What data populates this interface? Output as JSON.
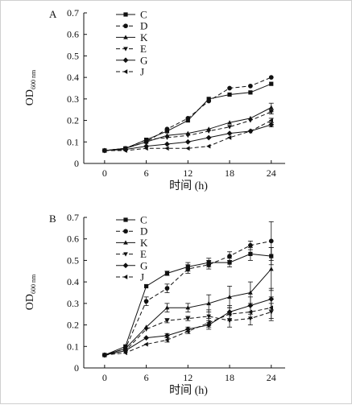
{
  "chart_data": [
    {
      "panel_label": "A",
      "type": "line",
      "ylabel_main": "OD",
      "ylabel_sub": "600 nm",
      "xlabel": "时间 (h)",
      "xticks": [
        0,
        6,
        12,
        18,
        24
      ],
      "yticks": [
        "0",
        "0.1",
        "0.2",
        "0.3",
        "0.4",
        "0.5",
        "0.6",
        "0.7"
      ],
      "ylim": [
        0,
        0.7
      ],
      "xlim": [
        -3,
        26
      ],
      "legend_position": "top-left",
      "series": [
        {
          "name": "C",
          "marker": "square",
          "dash": "solid",
          "x": [
            0,
            3,
            6,
            9,
            12,
            15,
            18,
            21,
            24
          ],
          "y": [
            0.06,
            0.07,
            0.11,
            0.15,
            0.2,
            0.3,
            0.32,
            0.33,
            0.37
          ],
          "err": [
            0,
            0,
            0,
            0,
            0,
            0,
            0,
            0,
            0
          ]
        },
        {
          "name": "D",
          "marker": "circle",
          "dash": "dashed",
          "x": [
            0,
            3,
            6,
            9,
            12,
            15,
            18,
            21,
            24
          ],
          "y": [
            0.06,
            0.07,
            0.1,
            0.16,
            0.21,
            0.29,
            0.35,
            0.36,
            0.4
          ],
          "err": [
            0,
            0,
            0,
            0,
            0,
            0,
            0,
            0,
            0
          ]
        },
        {
          "name": "K",
          "marker": "triangle-up",
          "dash": "solid",
          "x": [
            0,
            3,
            6,
            9,
            12,
            15,
            18,
            21,
            24
          ],
          "y": [
            0.06,
            0.07,
            0.1,
            0.13,
            0.14,
            0.16,
            0.19,
            0.21,
            0.26
          ],
          "err": [
            0,
            0,
            0,
            0,
            0,
            0,
            0,
            0,
            0.02
          ]
        },
        {
          "name": "E",
          "marker": "triangle-down",
          "dash": "dashed",
          "x": [
            0,
            3,
            6,
            9,
            12,
            15,
            18,
            21,
            24
          ],
          "y": [
            0.06,
            0.07,
            0.11,
            0.12,
            0.13,
            0.15,
            0.17,
            0.2,
            0.24
          ],
          "err": [
            0,
            0,
            0,
            0,
            0,
            0,
            0,
            0,
            0.01
          ]
        },
        {
          "name": "G",
          "marker": "diamond",
          "dash": "solid",
          "x": [
            0,
            3,
            6,
            9,
            12,
            15,
            18,
            21,
            24
          ],
          "y": [
            0.06,
            0.065,
            0.08,
            0.09,
            0.1,
            0.12,
            0.14,
            0.15,
            0.18
          ],
          "err": [
            0,
            0,
            0,
            0,
            0,
            0,
            0,
            0,
            0.01
          ]
        },
        {
          "name": "J",
          "marker": "triangle-left",
          "dash": "dashed",
          "x": [
            0,
            3,
            6,
            9,
            12,
            15,
            18,
            21,
            24
          ],
          "y": [
            0.06,
            0.06,
            0.07,
            0.07,
            0.07,
            0.08,
            0.12,
            0.15,
            0.2
          ],
          "err": [
            0,
            0,
            0,
            0,
            0,
            0,
            0,
            0,
            0.01
          ]
        }
      ]
    },
    {
      "panel_label": "B",
      "type": "line",
      "ylabel_main": "OD",
      "ylabel_sub": "600 nm",
      "xlabel": "时间 (h)",
      "xticks": [
        0,
        6,
        12,
        18,
        24
      ],
      "yticks": [
        "0",
        "0.1",
        "0.2",
        "0.3",
        "0.4",
        "0.5",
        "0.6",
        "0.7"
      ],
      "ylim": [
        0,
        0.7
      ],
      "xlim": [
        -3,
        26
      ],
      "legend_position": "top-left",
      "series": [
        {
          "name": "C",
          "marker": "square",
          "dash": "solid",
          "x": [
            0,
            3,
            6,
            9,
            12,
            15,
            18,
            21,
            24
          ],
          "y": [
            0.06,
            0.1,
            0.38,
            0.44,
            0.47,
            0.49,
            0.49,
            0.53,
            0.52
          ],
          "err": [
            0,
            0,
            0,
            0.01,
            0.02,
            0.02,
            0.02,
            0.03,
            0.04
          ]
        },
        {
          "name": "D",
          "marker": "circle",
          "dash": "dashed",
          "x": [
            0,
            3,
            6,
            9,
            12,
            15,
            18,
            21,
            24
          ],
          "y": [
            0.06,
            0.09,
            0.31,
            0.37,
            0.46,
            0.48,
            0.52,
            0.57,
            0.59
          ],
          "err": [
            0,
            0,
            0.02,
            0.02,
            0.02,
            0.02,
            0.02,
            0.02,
            0.09
          ]
        },
        {
          "name": "K",
          "marker": "triangle-up",
          "dash": "solid",
          "x": [
            0,
            3,
            6,
            9,
            12,
            15,
            18,
            21,
            24
          ],
          "y": [
            0.06,
            0.09,
            0.19,
            0.28,
            0.28,
            0.3,
            0.33,
            0.35,
            0.46
          ],
          "err": [
            0,
            0,
            0,
            0.02,
            0.02,
            0.04,
            0.05,
            0.05,
            0.1
          ]
        },
        {
          "name": "E",
          "marker": "triangle-down",
          "dash": "dashed",
          "x": [
            0,
            3,
            6,
            9,
            12,
            15,
            18,
            21,
            24
          ],
          "y": [
            0.06,
            0.08,
            0.18,
            0.22,
            0.23,
            0.24,
            0.22,
            0.23,
            0.26
          ],
          "err": [
            0,
            0,
            0,
            0.01,
            0.01,
            0.03,
            0.03,
            0.03,
            0.04
          ]
        },
        {
          "name": "G",
          "marker": "diamond",
          "dash": "solid",
          "x": [
            0,
            3,
            6,
            9,
            12,
            15,
            18,
            21,
            24
          ],
          "y": [
            0.06,
            0.08,
            0.14,
            0.15,
            0.18,
            0.2,
            0.26,
            0.29,
            0.32
          ],
          "err": [
            0,
            0,
            0,
            0.01,
            0.01,
            0.02,
            0.03,
            0.04,
            0.05
          ]
        },
        {
          "name": "J",
          "marker": "triangle-left",
          "dash": "dashed",
          "x": [
            0,
            3,
            6,
            9,
            12,
            15,
            18,
            21,
            24
          ],
          "y": [
            0.06,
            0.07,
            0.11,
            0.13,
            0.17,
            0.21,
            0.25,
            0.26,
            0.28
          ],
          "err": [
            0,
            0,
            0,
            0.01,
            0.01,
            0.02,
            0.03,
            0.03,
            0.05
          ]
        }
      ]
    }
  ]
}
